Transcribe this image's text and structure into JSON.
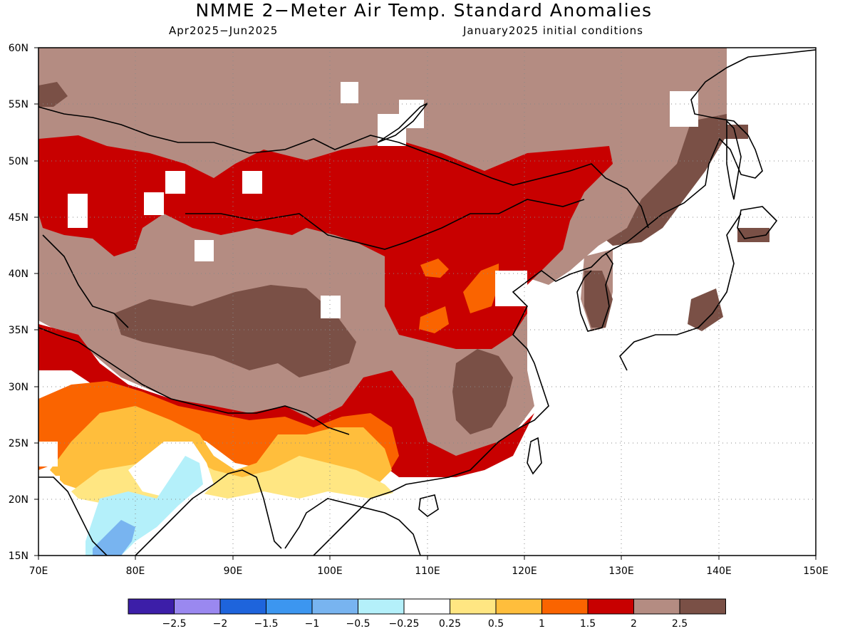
{
  "title": "NMME 2−Meter Air Temp. Standard Anomalies",
  "period": "Apr2025−Jun2025",
  "init": "January2025 initial conditions",
  "axes": {
    "lat": [
      "60N",
      "55N",
      "50N",
      "45N",
      "40N",
      "35N",
      "30N",
      "25N",
      "20N",
      "15N"
    ],
    "lon": [
      "70E",
      "80E",
      "90E",
      "100E",
      "110E",
      "120E",
      "130E",
      "140E",
      "150E"
    ]
  },
  "colorbar": {
    "colors": [
      "#3c1ea8",
      "#9a88f0",
      "#1e64dc",
      "#3c96f0",
      "#78b4f0",
      "#b4f0fa",
      "#ffffff",
      "#ffe682",
      "#ffbe3c",
      "#fa6400",
      "#c80000",
      "#b48c82",
      "#7a5046"
    ],
    "labels": [
      "−2.5",
      "−2",
      "−1.5",
      "−1",
      "−0.5",
      "−0.25",
      "0.25",
      "0.5",
      "1",
      "1.5",
      "2",
      "2.5"
    ]
  }
}
